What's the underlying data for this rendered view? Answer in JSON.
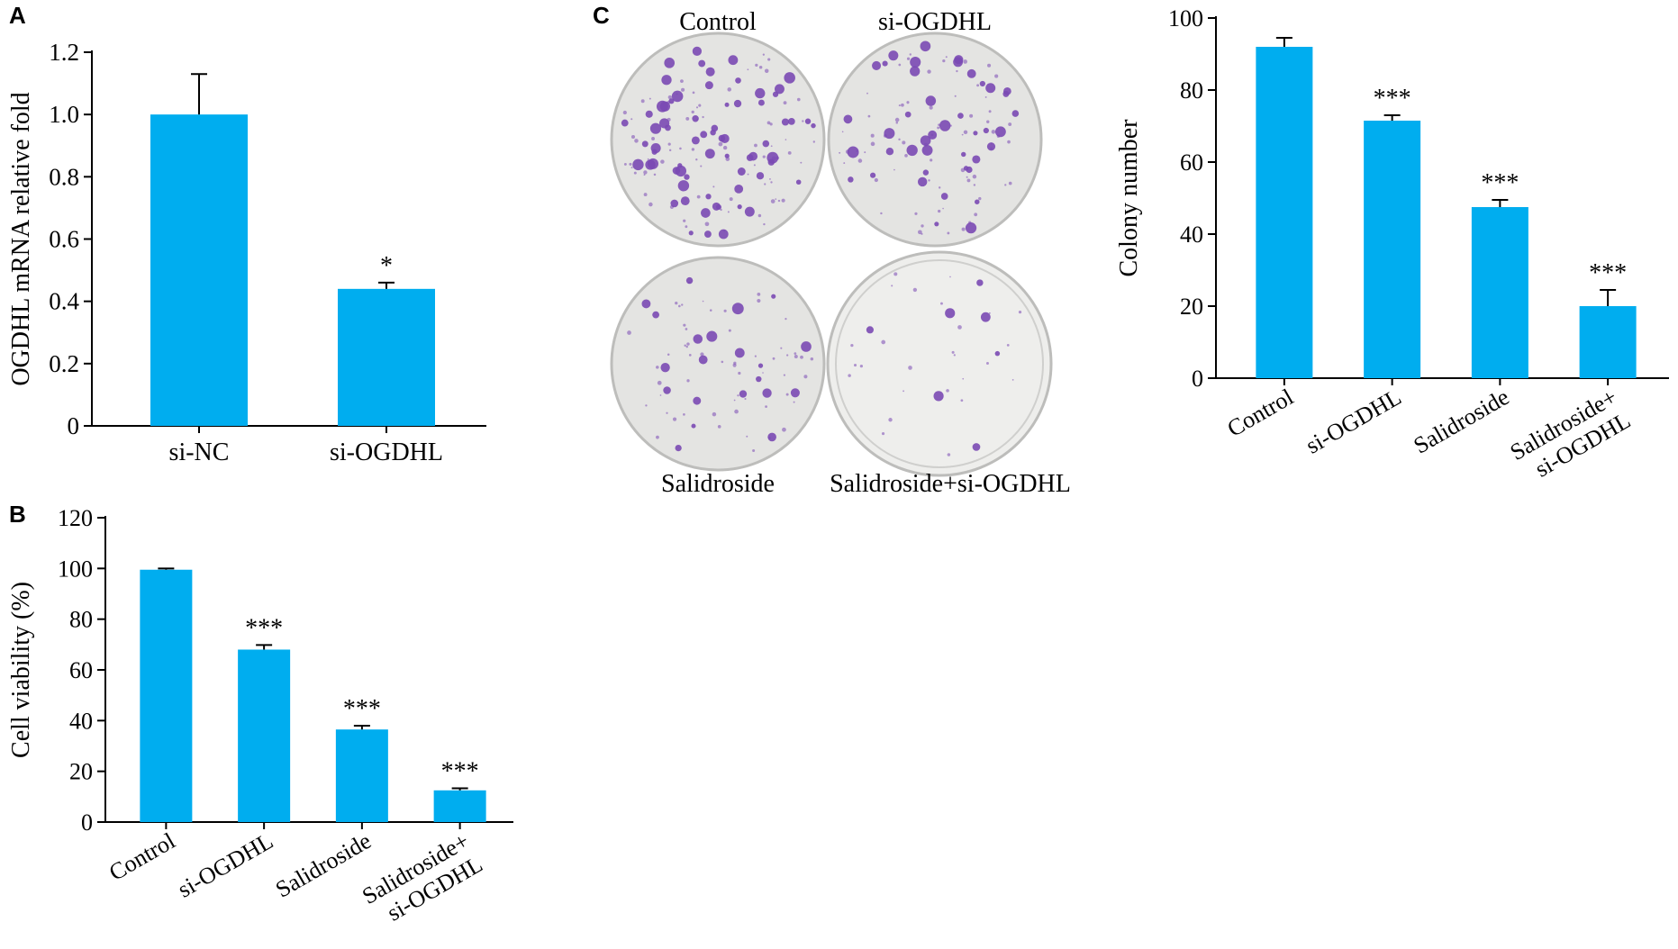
{
  "colors": {
    "bar": "#00adef",
    "axis": "#000000",
    "dish_bg": "#e4e4e2",
    "colony": "#7a49b4"
  },
  "panels": {
    "A": {
      "letter": "A"
    },
    "B": {
      "letter": "B"
    },
    "C": {
      "letter": "C",
      "dish_labels": [
        "Control",
        "si-OGDHL",
        "Salidroside",
        "Salidroside+si-OGDHL"
      ],
      "dish_density": [
        1.0,
        0.78,
        0.52,
        0.22
      ]
    }
  },
  "chart_data": [
    {
      "panel": "A",
      "type": "bar",
      "categories": [
        "si-NC",
        "si-OGDHL"
      ],
      "values": [
        1.0,
        0.44
      ],
      "errors": [
        0.13,
        0.02
      ],
      "annotations": [
        "",
        "*"
      ],
      "ylabel": "OGDHL mRNA relative fold",
      "ylim": [
        0,
        1.2
      ],
      "yticks": [
        "0",
        "0.2",
        "0.4",
        "0.6",
        "0.8",
        "1.0",
        "1.2"
      ]
    },
    {
      "panel": "B",
      "type": "bar",
      "categories": [
        "Control",
        "si-OGDHL",
        "Salidroside",
        "Salidroside+\nsi-OGDHL"
      ],
      "values": [
        99.5,
        68,
        36.5,
        12.5
      ],
      "errors": [
        0.5,
        1.8,
        1.5,
        0.8
      ],
      "annotations": [
        "",
        "***",
        "***",
        "***"
      ],
      "ylabel": "Cell viability (%)",
      "ylim": [
        0,
        120
      ],
      "yticks": [
        "0",
        "20",
        "40",
        "60",
        "80",
        "100",
        "120"
      ]
    },
    {
      "panel": "C",
      "type": "bar",
      "categories": [
        "Control",
        "si-OGDHL",
        "Salidroside",
        "Salidroside+\nsi-OGDHL"
      ],
      "values": [
        92,
        71.5,
        47.5,
        20
      ],
      "errors": [
        2.5,
        1.5,
        2.0,
        4.5
      ],
      "annotations": [
        "",
        "***",
        "***",
        "***"
      ],
      "ylabel": "Colony number",
      "ylim": [
        0,
        100
      ],
      "yticks": [
        "0",
        "20",
        "40",
        "60",
        "80",
        "100"
      ]
    }
  ]
}
